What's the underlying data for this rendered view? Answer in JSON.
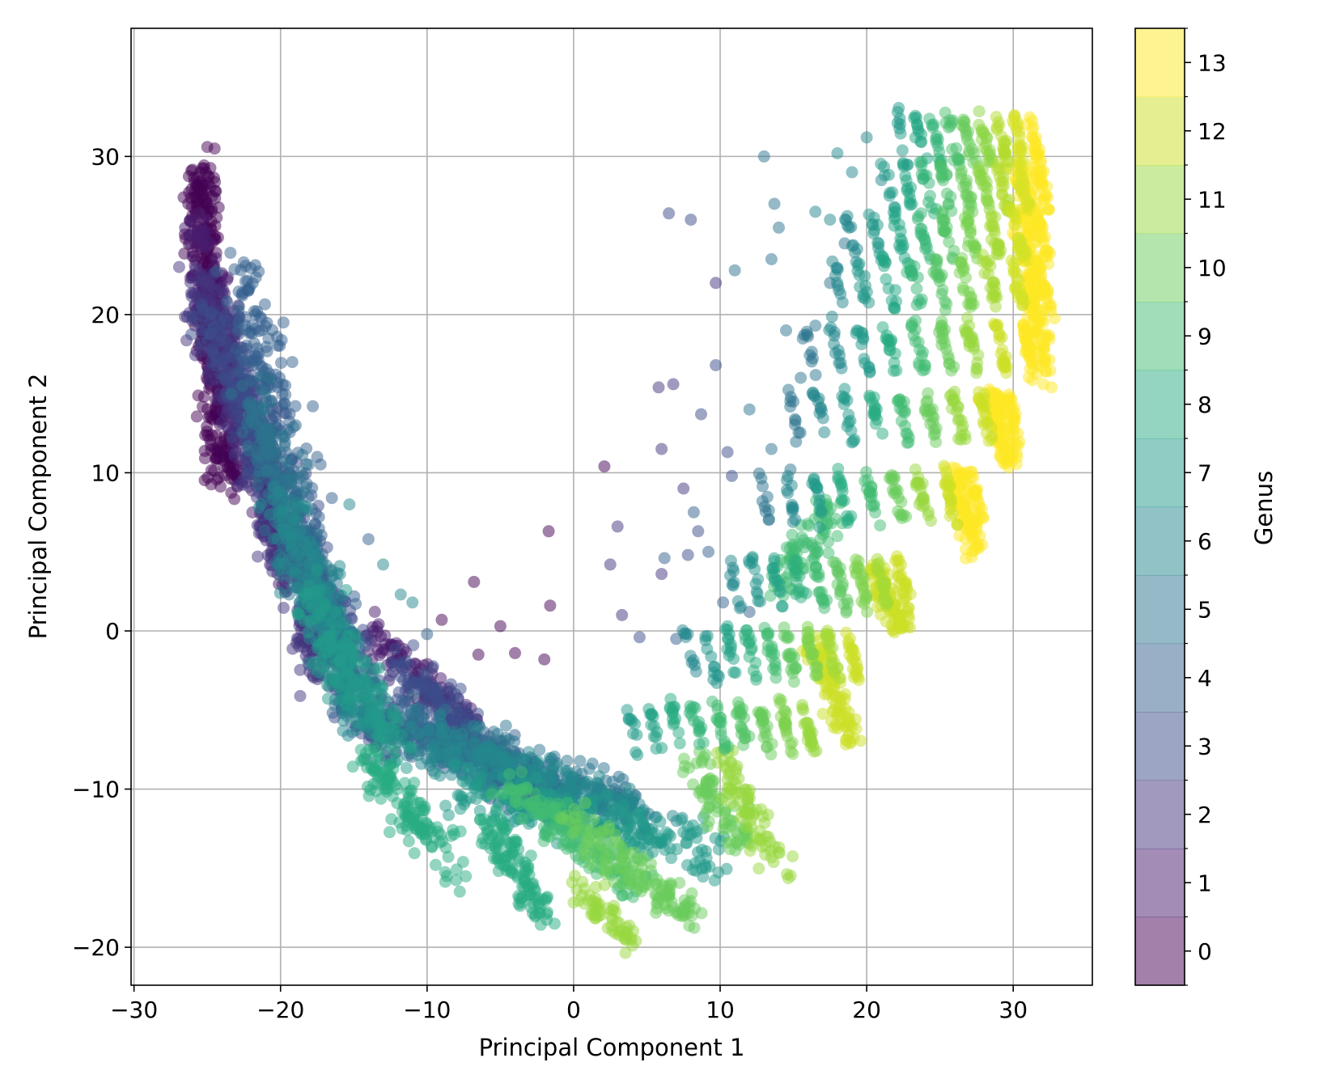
{
  "chart_data": {
    "type": "scatter",
    "title": "",
    "xlabel": "Principal Component 1",
    "ylabel": "Principal Component 2",
    "xlim": [
      -30.2,
      35.4
    ],
    "ylim": [
      -22.4,
      38.1
    ],
    "xticks": [
      -30,
      -20,
      -10,
      0,
      10,
      20,
      30
    ],
    "yticks": [
      -20,
      -10,
      0,
      10,
      20,
      30
    ],
    "grid": true,
    "marker": "circle",
    "alpha": 0.5,
    "colormap": "viridis",
    "colorbar": {
      "label": "Genus",
      "range": [
        -0.5,
        13.5
      ],
      "ticks": [
        0,
        1,
        2,
        3,
        4,
        5,
        6,
        7,
        8,
        9,
        10,
        11,
        12,
        13
      ],
      "discrete_levels": 14
    },
    "clusters": [
      {
        "genus": 0,
        "shape": "band",
        "from": [
          -25.5,
          29.5
        ],
        "to": [
          -23.8,
          9.0
        ],
        "count": 380,
        "spread": 1.1
      },
      {
        "genus": 0,
        "shape": "scatter",
        "points": [
          [
            2.1,
            10.4
          ],
          [
            -1.7,
            6.3
          ],
          [
            -6.8,
            3.1
          ],
          [
            -1.6,
            1.6
          ],
          [
            -9.0,
            0.7
          ],
          [
            -5.0,
            0.3
          ],
          [
            -6.5,
            -1.5
          ],
          [
            -4.0,
            -1.4
          ],
          [
            -2.0,
            -1.8
          ],
          [
            -24.5,
            30.5
          ],
          [
            -25.0,
            30.6
          ]
        ]
      },
      {
        "genus": 1,
        "shape": "band",
        "from": [
          -26.0,
          26.0
        ],
        "to": [
          -19.5,
          3.5
        ],
        "count": 320,
        "spread": 1.3
      },
      {
        "genus": 1,
        "shape": "band",
        "from": [
          -14.0,
          0.0
        ],
        "to": [
          -7.0,
          -6.0
        ],
        "count": 120,
        "spread": 1.2
      },
      {
        "genus": 2,
        "shape": "band",
        "from": [
          -25.5,
          22.0
        ],
        "to": [
          -17.0,
          -3.0
        ],
        "count": 380,
        "spread": 1.6
      },
      {
        "genus": 2,
        "shape": "scatter",
        "points": [
          [
            5.8,
            15.4
          ],
          [
            6.8,
            15.6
          ],
          [
            3.0,
            6.6
          ],
          [
            6.0,
            11.5
          ],
          [
            2.5,
            4.2
          ],
          [
            6.0,
            3.6
          ],
          [
            3.3,
            1.0
          ],
          [
            7.5,
            9.0
          ],
          [
            9.7,
            22.0
          ]
        ]
      },
      {
        "genus": 3,
        "shape": "band",
        "from": [
          -24.5,
          20.0
        ],
        "to": [
          -13.0,
          -7.0
        ],
        "count": 380,
        "spread": 1.8
      },
      {
        "genus": 3,
        "shape": "band",
        "from": [
          -12.0,
          -2.0
        ],
        "to": [
          -3.0,
          -10.5
        ],
        "count": 200,
        "spread": 1.5
      },
      {
        "genus": 3,
        "shape": "scatter",
        "points": [
          [
            6.5,
            26.4
          ],
          [
            8.0,
            26.0
          ],
          [
            4.5,
            -0.4
          ],
          [
            7.8,
            4.8
          ],
          [
            8.5,
            6.3
          ],
          [
            9.7,
            16.8
          ],
          [
            10.5,
            11.3
          ],
          [
            10.8,
            9.8
          ],
          [
            8.7,
            13.7
          ]
        ]
      },
      {
        "genus": 4,
        "shape": "band",
        "from": [
          -23.0,
          23.0
        ],
        "to": [
          -15.0,
          -5.0
        ],
        "count": 300,
        "spread": 1.6
      },
      {
        "genus": 4,
        "shape": "band",
        "from": [
          -14.0,
          -5.0
        ],
        "to": [
          0.0,
          -11.0
        ],
        "count": 240,
        "spread": 1.6
      },
      {
        "genus": 4,
        "shape": "scatter",
        "points": [
          [
            -19.8,
            19.5
          ],
          [
            -19.2,
            17.0
          ],
          [
            -17.8,
            14.2
          ],
          [
            -17.5,
            11.0
          ],
          [
            -16.5,
            8.4
          ],
          [
            -14.0,
            5.8
          ],
          [
            -10.0,
            -0.2
          ],
          [
            8.2,
            7.5
          ],
          [
            9.2,
            5.0
          ],
          [
            6.2,
            4.6
          ],
          [
            7.0,
            -0.5
          ],
          [
            10.2,
            1.8
          ],
          [
            12.0,
            1.2
          ]
        ]
      },
      {
        "genus": 5,
        "shape": "band",
        "from": [
          -22.0,
          15.0
        ],
        "to": [
          -15.0,
          -4.0
        ],
        "count": 260,
        "spread": 1.8
      },
      {
        "genus": 5,
        "shape": "band",
        "from": [
          -12.0,
          -6.0
        ],
        "to": [
          4.0,
          -11.0
        ],
        "count": 260,
        "spread": 1.7
      },
      {
        "genus": 5,
        "shape": "scatter",
        "points": [
          [
            11.0,
            22.8
          ],
          [
            13.0,
            30.0
          ],
          [
            13.7,
            27.0
          ],
          [
            14.0,
            25.5
          ],
          [
            13.5,
            23.5
          ],
          [
            14.5,
            19.0
          ],
          [
            15.5,
            16.0
          ],
          [
            15.0,
            14.5
          ],
          [
            12.0,
            14.0
          ],
          [
            13.5,
            11.5
          ],
          [
            14.8,
            10.2
          ],
          [
            16.5,
            19.3
          ],
          [
            17.5,
            22.0
          ],
          [
            18.5,
            24.5
          ]
        ]
      },
      {
        "genus": 6,
        "shape": "band",
        "from": [
          -20.0,
          8.0
        ],
        "to": [
          -14.0,
          -6.0
        ],
        "count": 200,
        "spread": 1.6
      },
      {
        "genus": 6,
        "shape": "band",
        "from": [
          -10.0,
          -7.0
        ],
        "to": [
          6.0,
          -12.0
        ],
        "count": 240,
        "spread": 1.6
      },
      {
        "genus": 6,
        "shape": "scatter",
        "points": [
          [
            -15.3,
            8.0
          ],
          [
            -13.0,
            4.2
          ],
          [
            -11.8,
            2.3
          ],
          [
            -11.0,
            1.8
          ],
          [
            16.5,
            26.5
          ],
          [
            17.5,
            26.0
          ],
          [
            18.8,
            25.5
          ],
          [
            19.0,
            29.0
          ],
          [
            18.0,
            30.2
          ],
          [
            20.0,
            31.2
          ],
          [
            21.0,
            28.5
          ],
          [
            22.5,
            29.5
          ]
        ]
      },
      {
        "genus": 7,
        "shape": "band",
        "from": [
          -18.0,
          2.0
        ],
        "to": [
          -12.0,
          -8.0
        ],
        "count": 180,
        "spread": 1.6
      },
      {
        "genus": 7,
        "shape": "band",
        "from": [
          -8.0,
          -10.0
        ],
        "to": [
          10.0,
          -14.0
        ],
        "count": 240,
        "spread": 1.6
      },
      {
        "genus": 8,
        "shape": "band",
        "from": [
          -14.0,
          -8.0
        ],
        "to": [
          -8.0,
          -15.0
        ],
        "count": 140,
        "spread": 1.4
      },
      {
        "genus": 8,
        "shape": "band",
        "from": [
          -6.0,
          -12.0
        ],
        "to": [
          -2.0,
          -18.0
        ],
        "count": 120,
        "spread": 1.2
      },
      {
        "genus": 9,
        "shape": "band",
        "from": [
          -4.0,
          -10.0
        ],
        "to": [
          4.0,
          -16.0
        ],
        "count": 140,
        "spread": 1.3
      },
      {
        "genus": 9,
        "shape": "band",
        "from": [
          14.0,
          3.0
        ],
        "to": [
          18.0,
          8.0
        ],
        "count": 80,
        "spread": 1.2
      },
      {
        "genus": 10,
        "shape": "band",
        "from": [
          0.0,
          -12.0
        ],
        "to": [
          8.0,
          -18.0
        ],
        "count": 140,
        "spread": 1.3
      },
      {
        "genus": 10,
        "shape": "band",
        "from": [
          8.0,
          -8.0
        ],
        "to": [
          12.0,
          -14.0
        ],
        "count": 80,
        "spread": 1.2
      },
      {
        "genus": 11,
        "shape": "band",
        "from": [
          0.0,
          -16.0
        ],
        "to": [
          4.0,
          -19.5
        ],
        "count": 60,
        "spread": 0.9
      },
      {
        "genus": 11,
        "shape": "band",
        "from": [
          10.0,
          -8.0
        ],
        "to": [
          14.0,
          -15.0
        ],
        "count": 80,
        "spread": 1.0
      },
      {
        "genus": 12,
        "shape": "band",
        "from": [
          16.5,
          -1.0
        ],
        "to": [
          19.0,
          -7.0
        ],
        "count": 100,
        "spread": 0.8
      },
      {
        "genus": 12,
        "shape": "band",
        "from": [
          20.5,
          4.0
        ],
        "to": [
          22.5,
          0.0
        ],
        "count": 90,
        "spread": 0.8
      },
      {
        "genus": 13,
        "shape": "band",
        "from": [
          26.0,
          10.0
        ],
        "to": [
          27.5,
          5.0
        ],
        "count": 100,
        "spread": 0.8
      },
      {
        "genus": 13,
        "shape": "band",
        "from": [
          28.5,
          15.0
        ],
        "to": [
          30.0,
          10.5
        ],
        "count": 100,
        "spread": 0.8
      },
      {
        "genus": 13,
        "shape": "band",
        "from": [
          30.5,
          29.5
        ],
        "to": [
          32.0,
          16.0
        ],
        "count": 200,
        "spread": 0.9
      }
    ],
    "fan_rows": [
      {
        "y": 31.0,
        "x_start": 22.5,
        "x_end": 31.5,
        "genus_start": 7,
        "genus_end": 13
      },
      {
        "y": 28.0,
        "x_start": 21.5,
        "x_end": 32.0,
        "genus_start": 7,
        "genus_end": 13
      },
      {
        "y": 25.0,
        "x_start": 19.0,
        "x_end": 32.0,
        "genus_start": 6,
        "genus_end": 13
      },
      {
        "y": 22.0,
        "x_start": 18.0,
        "x_end": 32.0,
        "genus_start": 6,
        "genus_end": 13
      },
      {
        "y": 18.0,
        "x_start": 16.0,
        "x_end": 31.0,
        "genus_start": 5,
        "genus_end": 13
      },
      {
        "y": 13.5,
        "x_start": 15.0,
        "x_end": 30.0,
        "genus_start": 5,
        "genus_end": 13
      },
      {
        "y": 8.5,
        "x_start": 13.0,
        "x_end": 27.5,
        "genus_start": 5,
        "genus_end": 13
      },
      {
        "y": 3.0,
        "x_start": 11.0,
        "x_end": 22.5,
        "genus_start": 6,
        "genus_end": 12
      },
      {
        "y": -1.5,
        "x_start": 8.0,
        "x_end": 19.0,
        "genus_start": 6,
        "genus_end": 12
      },
      {
        "y": -6.0,
        "x_start": 4.0,
        "x_end": 16.0,
        "genus_start": 7,
        "genus_end": 11
      }
    ]
  }
}
